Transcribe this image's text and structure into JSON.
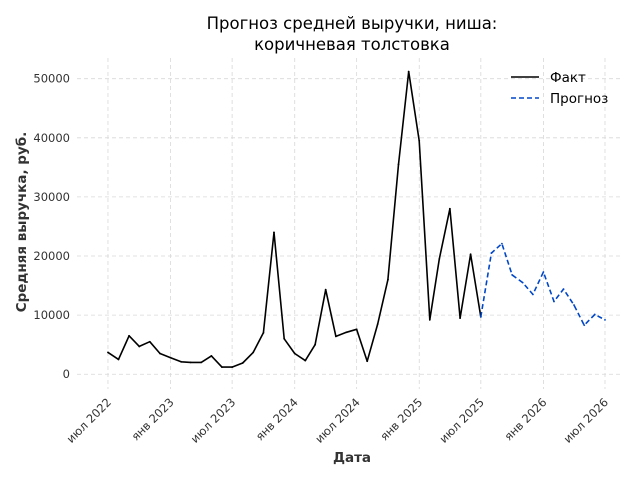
{
  "chart_data": {
    "type": "line",
    "title_lines": [
      "Прогноз средней выручки, ниша:",
      "коричневая толстовка"
    ],
    "xlabel": "Дата",
    "ylabel": "Средняя выручка, руб.",
    "ylim": [
      -2500,
      53500
    ],
    "xlim": [
      "2022-04-01",
      "2026-08-20"
    ],
    "yticks": [
      0,
      10000,
      20000,
      30000,
      40000,
      50000
    ],
    "xticks": [
      {
        "date": "2022-07-01",
        "label": "июл 2022"
      },
      {
        "date": "2023-01-01",
        "label": "янв 2023"
      },
      {
        "date": "2023-07-01",
        "label": "июл 2023"
      },
      {
        "date": "2024-01-01",
        "label": "янв 2024"
      },
      {
        "date": "2024-07-01",
        "label": "июл 2024"
      },
      {
        "date": "2025-01-01",
        "label": "янв 2025"
      },
      {
        "date": "2025-07-01",
        "label": "июл 2025"
      },
      {
        "date": "2026-01-01",
        "label": "янв 2026"
      },
      {
        "date": "2026-07-01",
        "label": "июл 2026"
      }
    ],
    "grid": true,
    "legend_position": "top-right",
    "series": [
      {
        "name": "Факт",
        "color": "#000000",
        "style": "solid",
        "points": [
          [
            "2022-07-01",
            3700
          ],
          [
            "2022-08-01",
            2500
          ],
          [
            "2022-09-01",
            6500
          ],
          [
            "2022-10-01",
            4700
          ],
          [
            "2022-11-01",
            5500
          ],
          [
            "2022-12-01",
            3500
          ],
          [
            "2023-01-01",
            2800
          ],
          [
            "2023-02-01",
            2100
          ],
          [
            "2023-03-01",
            2000
          ],
          [
            "2023-04-01",
            2000
          ],
          [
            "2023-05-01",
            3100
          ],
          [
            "2023-06-01",
            1200
          ],
          [
            "2023-07-01",
            1200
          ],
          [
            "2023-08-01",
            1900
          ],
          [
            "2023-09-01",
            3700
          ],
          [
            "2023-10-01",
            7000
          ],
          [
            "2023-11-01",
            24000
          ],
          [
            "2023-12-01",
            6000
          ],
          [
            "2024-01-01",
            3500
          ],
          [
            "2024-02-01",
            2300
          ],
          [
            "2024-03-01",
            5000
          ],
          [
            "2024-04-01",
            14300
          ],
          [
            "2024-05-01",
            6400
          ],
          [
            "2024-06-01",
            7100
          ],
          [
            "2024-07-01",
            7600
          ],
          [
            "2024-08-01",
            2200
          ],
          [
            "2024-09-01",
            8500
          ],
          [
            "2024-10-01",
            16000
          ],
          [
            "2024-11-01",
            35500
          ],
          [
            "2024-12-01",
            51200
          ],
          [
            "2025-01-01",
            39500
          ],
          [
            "2025-02-01",
            9200
          ],
          [
            "2025-03-01",
            19500
          ],
          [
            "2025-04-01",
            28000
          ],
          [
            "2025-05-01",
            9500
          ],
          [
            "2025-06-01",
            20300
          ],
          [
            "2025-07-01",
            9700
          ]
        ]
      },
      {
        "name": "Прогноз",
        "color": "#0047c8",
        "style": "dashed",
        "points": [
          [
            "2025-07-01",
            9700
          ],
          [
            "2025-08-01",
            20500
          ],
          [
            "2025-09-01",
            22100
          ],
          [
            "2025-10-01",
            16800
          ],
          [
            "2025-11-01",
            15500
          ],
          [
            "2025-12-01",
            13500
          ],
          [
            "2026-01-01",
            17300
          ],
          [
            "2026-02-01",
            12300
          ],
          [
            "2026-03-01",
            14400
          ],
          [
            "2026-04-01",
            11700
          ],
          [
            "2026-05-01",
            8300
          ],
          [
            "2026-06-01",
            10100
          ],
          [
            "2026-07-01",
            9200
          ]
        ]
      }
    ]
  }
}
